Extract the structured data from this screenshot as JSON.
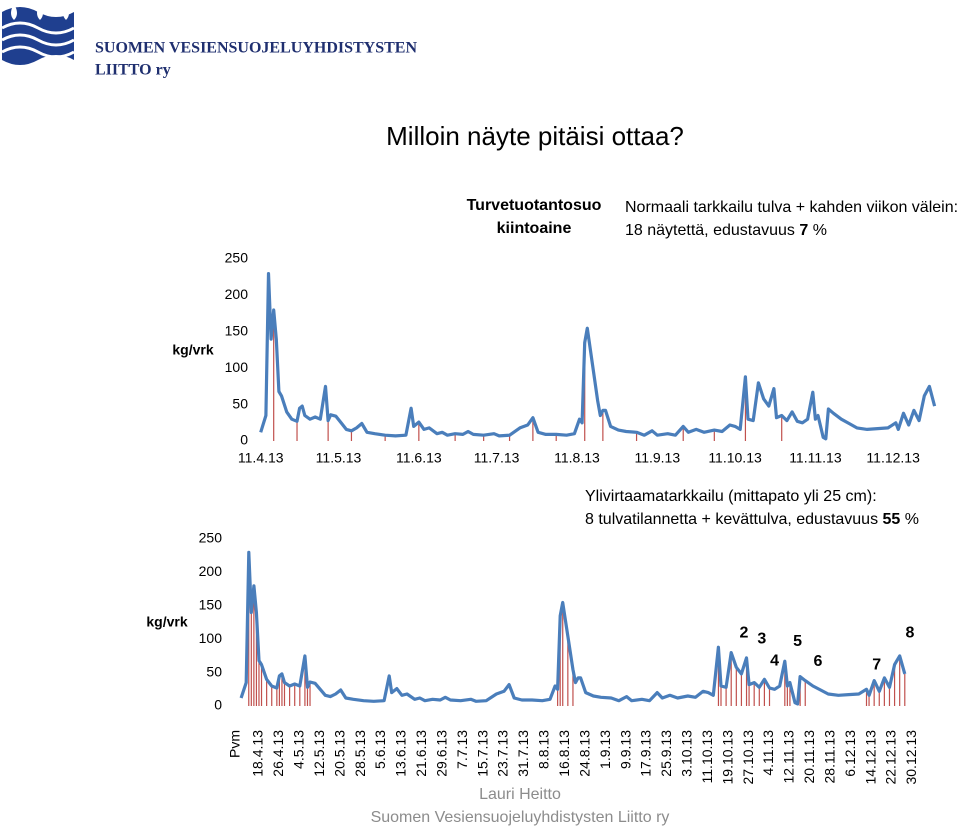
{
  "header": {
    "org": [
      "SUOMEN VESIENSUOJELUYHDISTYSTEN",
      "LIITTO ry"
    ],
    "title": "Milloin näyte pitäisi ottaa?"
  },
  "footer": {
    "author": "Lauri Heitto",
    "org": "Suomen Vesiensuojeluyhdistysten Liitto ry"
  },
  "chart_data": [
    {
      "type": "line",
      "label": [
        "Turvetuotantosuo",
        "kiintoaine"
      ],
      "note": [
        [
          {
            "text": "Normaali tarkkailu tulva + kahden viikon välein:"
          }
        ],
        [
          {
            "text": "18 näytettä, edustavuus "
          },
          {
            "text": "7",
            "bold": true
          },
          {
            "text": " %"
          }
        ]
      ],
      "y_label": "kg/vrk",
      "x": [
        "11.4.13",
        "13.4.13",
        "14.4.13",
        "15.4.13",
        "16.4.13",
        "17.4.13",
        "18.4.13",
        "19.4.13",
        "21.4.13",
        "23.4.13",
        "25.4.13",
        "26.4.13",
        "27.4.13",
        "28.4.13",
        "30.4.13",
        "2.5.13",
        "4.5.13",
        "6.5.13",
        "7.5.13",
        "8.5.13",
        "10.5.13",
        "12.5.13",
        "14.5.13",
        "16.5.13",
        "18.5.13",
        "20.5.13",
        "22.5.13",
        "25.5.13",
        "29.5.13",
        "2.6.13",
        "6.6.13",
        "8.6.13",
        "9.6.13",
        "11.6.13",
        "13.6.13",
        "15.6.13",
        "18.6.13",
        "20.6.13",
        "22.6.13",
        "25.6.13",
        "28.6.13",
        "30.6.13",
        "2.7.13",
        "6.7.13",
        "10.7.13",
        "12.7.13",
        "16.7.13",
        "20.7.13",
        "23.7.13",
        "25.7.13",
        "27.7.13",
        "30.7.13",
        "3.8.13",
        "7.8.13",
        "10.8.13",
        "12.8.13",
        "13.8.13",
        "14.8.13",
        "15.8.13",
        "17.8.13",
        "19.8.13",
        "20.8.13",
        "21.8.13",
        "22.8.13",
        "24.8.13",
        "27.8.13",
        "30.8.13",
        "3.9.13",
        "6.9.13",
        "9.9.13",
        "11.9.13",
        "15.9.13",
        "18.9.13",
        "21.9.13",
        "23.9.13",
        "26.9.13",
        "29.9.13",
        "3.10.13",
        "6.10.13",
        "9.10.13",
        "11.10.13",
        "13.10.13",
        "15.10.13",
        "16.10.13",
        "18.10.13",
        "20.10.13",
        "22.10.13",
        "24.10.13",
        "26.10.13",
        "27.10.13",
        "29.10.13",
        "31.10.13",
        "2.11.13",
        "4.11.13",
        "6.11.13",
        "8.11.13",
        "10.11.13",
        "11.11.13",
        "12.11.13",
        "14.11.13",
        "15.11.13",
        "16.11.13",
        "18.11.13",
        "21.11.13",
        "24.11.13",
        "27.11.13",
        "1.12.13",
        "5.12.13",
        "9.12.13",
        "12.12.13",
        "13.12.13",
        "15.12.13",
        "17.12.13",
        "19.12.13",
        "21.12.13",
        "23.12.13",
        "25.12.13",
        "27.12.13"
      ],
      "series": [
        {
          "color": "#4a7ebb",
          "values": [
            12,
            35,
            230,
            140,
            180,
            140,
            68,
            62,
            40,
            30,
            27,
            45,
            48,
            35,
            30,
            33,
            30,
            75,
            28,
            36,
            34,
            25,
            16,
            14,
            18,
            24,
            12,
            10,
            8,
            7,
            8,
            45,
            20,
            26,
            16,
            18,
            10,
            12,
            8,
            10,
            9,
            13,
            9,
            8,
            10,
            7,
            8,
            18,
            22,
            32,
            12,
            9,
            9,
            8,
            10,
            30,
            25,
            135,
            155,
            105,
            55,
            35,
            42,
            42,
            20,
            15,
            13,
            12,
            8,
            14,
            8,
            10,
            8,
            20,
            12,
            16,
            12,
            15,
            13,
            22,
            20,
            16,
            88,
            30,
            28,
            80,
            58,
            48,
            72,
            32,
            35,
            28,
            40,
            27,
            25,
            30,
            67,
            30,
            35,
            5,
            3,
            44,
            38,
            30,
            24,
            18,
            16,
            17,
            18,
            25,
            16,
            38,
            22,
            42,
            28,
            62,
            75,
            48
          ]
        }
      ],
      "samples": {
        "color": "#c0504d",
        "x": [
          "16.4.13",
          "25.4.13",
          "7.5.13",
          "16.5.13",
          "29.5.13",
          "11.6.13",
          "25.6.13",
          "6.7.13",
          "16.7.13",
          "25.7.13",
          "3.8.13",
          "14.8.13",
          "21.8.13",
          "3.9.13",
          "21.9.13",
          "3.10.13",
          "15.10.13",
          "29.10.13"
        ]
      },
      "xlim": [
        "3.4.13",
        "31.12.13"
      ],
      "xticks": [
        "11.4.13",
        "11.5.13",
        "11.6.13",
        "11.7.13",
        "11.8.13",
        "11.9.13",
        "11.10.13",
        "11.11.13",
        "11.12.13"
      ],
      "ylim": [
        0,
        250
      ],
      "yticks": [
        0,
        50,
        100,
        150,
        200,
        250
      ]
    },
    {
      "type": "line",
      "note": [
        [
          {
            "text": "Ylivirtaamatarkkailu (mittapato yli 25 cm):"
          }
        ],
        [
          {
            "text": "8 tulvatilannetta + kevättulva, edustavuus "
          },
          {
            "text": "55",
            "bold": true
          },
          {
            "text": " %"
          }
        ]
      ],
      "y_label": "kg/vrk",
      "x_label": "Pvm",
      "x": [
        "11.4.13",
        "13.4.13",
        "14.4.13",
        "15.4.13",
        "16.4.13",
        "17.4.13",
        "18.4.13",
        "19.4.13",
        "21.4.13",
        "23.4.13",
        "25.4.13",
        "26.4.13",
        "27.4.13",
        "28.4.13",
        "30.4.13",
        "2.5.13",
        "4.5.13",
        "6.5.13",
        "7.5.13",
        "8.5.13",
        "10.5.13",
        "12.5.13",
        "14.5.13",
        "16.5.13",
        "18.5.13",
        "20.5.13",
        "22.5.13",
        "25.5.13",
        "29.5.13",
        "2.6.13",
        "6.6.13",
        "8.6.13",
        "9.6.13",
        "11.6.13",
        "13.6.13",
        "15.6.13",
        "18.6.13",
        "20.6.13",
        "22.6.13",
        "25.6.13",
        "28.6.13",
        "30.6.13",
        "2.7.13",
        "6.7.13",
        "10.7.13",
        "12.7.13",
        "16.7.13",
        "20.7.13",
        "23.7.13",
        "25.7.13",
        "27.7.13",
        "30.7.13",
        "3.8.13",
        "7.8.13",
        "10.8.13",
        "12.8.13",
        "13.8.13",
        "14.8.13",
        "15.8.13",
        "17.8.13",
        "19.8.13",
        "20.8.13",
        "21.8.13",
        "22.8.13",
        "24.8.13",
        "27.8.13",
        "30.8.13",
        "3.9.13",
        "6.9.13",
        "9.9.13",
        "11.9.13",
        "15.9.13",
        "18.9.13",
        "21.9.13",
        "23.9.13",
        "26.9.13",
        "29.9.13",
        "3.10.13",
        "6.10.13",
        "9.10.13",
        "11.10.13",
        "13.10.13",
        "15.10.13",
        "16.10.13",
        "18.10.13",
        "20.10.13",
        "22.10.13",
        "24.10.13",
        "26.10.13",
        "27.10.13",
        "29.10.13",
        "31.10.13",
        "2.11.13",
        "4.11.13",
        "6.11.13",
        "8.11.13",
        "10.11.13",
        "11.11.13",
        "12.11.13",
        "14.11.13",
        "15.11.13",
        "16.11.13",
        "18.11.13",
        "21.11.13",
        "24.11.13",
        "27.11.13",
        "1.12.13",
        "5.12.13",
        "9.12.13",
        "12.12.13",
        "13.12.13",
        "15.12.13",
        "17.12.13",
        "19.12.13",
        "21.12.13",
        "23.12.13",
        "25.12.13",
        "27.12.13"
      ],
      "series": [
        {
          "color": "#4a7ebb",
          "values": [
            12,
            35,
            230,
            140,
            180,
            140,
            68,
            62,
            40,
            30,
            27,
            45,
            48,
            35,
            30,
            33,
            30,
            75,
            28,
            36,
            34,
            25,
            16,
            14,
            18,
            24,
            12,
            10,
            8,
            7,
            8,
            45,
            20,
            26,
            16,
            18,
            10,
            12,
            8,
            10,
            9,
            13,
            9,
            8,
            10,
            7,
            8,
            18,
            22,
            32,
            12,
            9,
            9,
            8,
            10,
            30,
            25,
            135,
            155,
            105,
            55,
            35,
            42,
            42,
            20,
            15,
            13,
            12,
            8,
            14,
            8,
            10,
            8,
            20,
            12,
            16,
            12,
            15,
            13,
            22,
            20,
            16,
            88,
            30,
            28,
            80,
            58,
            48,
            72,
            32,
            35,
            28,
            40,
            27,
            25,
            30,
            67,
            30,
            35,
            5,
            3,
            44,
            38,
            30,
            24,
            18,
            16,
            17,
            18,
            25,
            16,
            38,
            22,
            42,
            28,
            62,
            75,
            48
          ]
        }
      ],
      "samples": {
        "color": "#c0504d",
        "x": [
          "14.4.13",
          "15.4.13",
          "16.4.13",
          "17.4.13",
          "18.4.13",
          "19.4.13",
          "21.4.13",
          "23.4.13",
          "25.4.13",
          "26.4.13",
          "27.4.13",
          "28.4.13",
          "30.4.13",
          "2.5.13",
          "4.5.13",
          "6.5.13",
          "7.5.13",
          "8.5.13",
          "13.8.13",
          "14.8.13",
          "15.8.13",
          "17.8.13",
          "19.8.13",
          "15.10.13",
          "16.10.13",
          "18.10.13",
          "20.10.13",
          "22.10.13",
          "24.10.13",
          "26.10.13",
          "27.10.13",
          "29.10.13",
          "31.10.13",
          "2.11.13",
          "4.11.13",
          "10.11.13",
          "11.11.13",
          "12.11.13",
          "16.11.13",
          "18.11.13",
          "12.12.13",
          "13.12.13",
          "15.12.13",
          "17.12.13",
          "19.12.13",
          "21.12.13",
          "23.12.13",
          "25.12.13",
          "27.12.13"
        ]
      },
      "annotations": [
        {
          "text": "2",
          "x": "25.10.13",
          "y": 109
        },
        {
          "text": "3",
          "x": "1.11.13",
          "y": 100
        },
        {
          "text": "4",
          "x": "6.11.13",
          "y": 67
        },
        {
          "text": "5",
          "x": "15.11.13",
          "y": 96
        },
        {
          "text": "6",
          "x": "23.11.13",
          "y": 66
        },
        {
          "text": "7",
          "x": "16.12.13",
          "y": 61
        },
        {
          "text": "8",
          "x": "29.12.13",
          "y": 109
        }
      ],
      "xlim": [
        "9.4.13",
        "31.12.13"
      ],
      "xticks": [
        "18.4.13",
        "26.4.13",
        "4.5.13",
        "12.5.13",
        "20.5.13",
        "28.5.13",
        "5.6.13",
        "13.6.13",
        "21.6.13",
        "29.6.13",
        "7.7.13",
        "15.7.13",
        "23.7.13",
        "31.7.13",
        "8.8.13",
        "16.8.13",
        "24.8.13",
        "1.9.13",
        "9.9.13",
        "17.9.13",
        "25.9.13",
        "3.10.13",
        "11.10.13",
        "19.10.13",
        "27.10.13",
        "4.11.13",
        "12.11.13",
        "20.11.13",
        "28.11.13",
        "6.12.13",
        "14.12.13",
        "22.12.13",
        "30.12.13"
      ],
      "ylim": [
        0,
        250
      ],
      "yticks": [
        0,
        50,
        100,
        150,
        200,
        250
      ]
    }
  ]
}
